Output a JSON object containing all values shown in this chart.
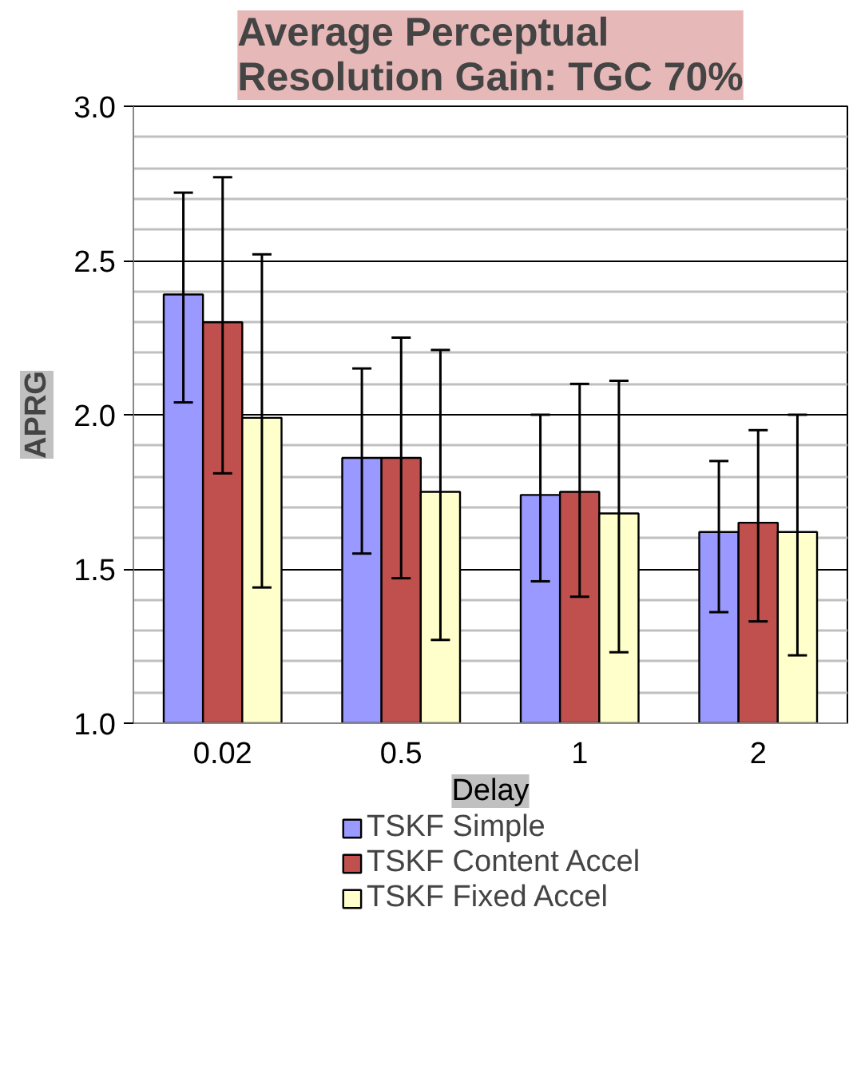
{
  "chart_data": {
    "type": "bar",
    "title": "Average Perceptual Resolution Gain: TGC 70%",
    "xlabel": "Delay",
    "ylabel": "APRG",
    "categories": [
      "0.02",
      "0.5",
      "1",
      "2"
    ],
    "series": [
      {
        "name": "TSKF Simple",
        "color": "#9999ff",
        "values": [
          2.39,
          1.86,
          1.74,
          1.62
        ],
        "errors": [
          [
            2.04,
            2.72
          ],
          [
            1.55,
            2.15
          ],
          [
            1.46,
            2.0
          ],
          [
            1.36,
            1.85
          ]
        ]
      },
      {
        "name": "TSKF Content Accel",
        "color": "#c0504d",
        "values": [
          2.3,
          1.86,
          1.75,
          1.65
        ],
        "errors": [
          [
            1.81,
            2.77
          ],
          [
            1.47,
            2.25
          ],
          [
            1.41,
            2.1
          ],
          [
            1.33,
            1.95
          ]
        ]
      },
      {
        "name": "TSKF Fixed Accel",
        "color": "#ffffcc",
        "values": [
          1.99,
          1.75,
          1.68,
          1.62
        ],
        "errors": [
          [
            1.44,
            2.52
          ],
          [
            1.27,
            2.21
          ],
          [
            1.23,
            2.11
          ],
          [
            1.22,
            2.0
          ]
        ]
      }
    ],
    "ylim": [
      1.0,
      3.0
    ],
    "yticks": [
      {
        "value": 1.0,
        "label": "1.0"
      },
      {
        "value": 1.5,
        "label": "1.5"
      },
      {
        "value": 2.0,
        "label": "2.0"
      },
      {
        "value": 2.5,
        "label": "2.5"
      },
      {
        "value": 3.0,
        "label": "3.0"
      }
    ],
    "grid": "y",
    "legend": "bottom"
  }
}
